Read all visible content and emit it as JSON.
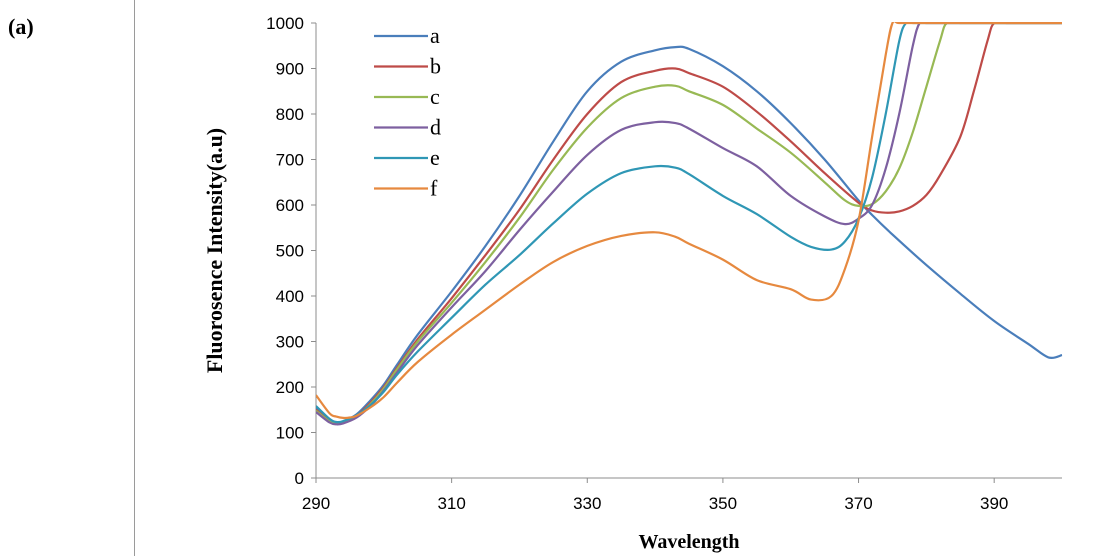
{
  "panel_label": "(a)",
  "chart_data": {
    "type": "line",
    "xlabel": "Wavelength",
    "ylabel": "Fluorosence Intensity(a.u)",
    "xlim": [
      290,
      400
    ],
    "ylim": [
      0,
      1000
    ],
    "xticks": [
      290,
      310,
      330,
      350,
      370,
      390
    ],
    "yticks": [
      0,
      100,
      200,
      300,
      400,
      500,
      600,
      700,
      800,
      900,
      1000
    ],
    "grid": false,
    "legend_position": "top-left",
    "series": [
      {
        "name": "a",
        "color": "#4a7ebb",
        "x": [
          290,
          292,
          293,
          294,
          296,
          298,
          300,
          302,
          305,
          310,
          315,
          320,
          325,
          330,
          335,
          340,
          343,
          345,
          350,
          355,
          360,
          365,
          370,
          372,
          375,
          380,
          385,
          390,
          395,
          398,
          400
        ],
        "y": [
          155,
          128,
          122,
          124,
          140,
          170,
          205,
          250,
          315,
          410,
          510,
          620,
          740,
          850,
          915,
          940,
          947,
          943,
          905,
          850,
          780,
          700,
          610,
          578,
          535,
          468,
          405,
          345,
          295,
          265,
          270
        ]
      },
      {
        "name": "b",
        "color": "#be4b48",
        "x": [
          290,
          292,
          293,
          294,
          296,
          298,
          300,
          302,
          305,
          310,
          315,
          320,
          325,
          330,
          335,
          340,
          343,
          345,
          350,
          355,
          360,
          365,
          370,
          372,
          374,
          376,
          378,
          380,
          382,
          385,
          387,
          389,
          390,
          392,
          395,
          400
        ],
        "y": [
          150,
          125,
          120,
          122,
          137,
          165,
          200,
          243,
          305,
          395,
          490,
          590,
          700,
          800,
          870,
          895,
          900,
          890,
          860,
          805,
          740,
          670,
          605,
          588,
          583,
          586,
          598,
          622,
          665,
          750,
          850,
          960,
          1000,
          1000,
          1000,
          1000
        ]
      },
      {
        "name": "c",
        "color": "#98b954",
        "x": [
          290,
          292,
          293,
          294,
          296,
          298,
          300,
          302,
          305,
          310,
          315,
          320,
          325,
          330,
          335,
          340,
          343,
          345,
          350,
          355,
          360,
          365,
          368,
          370,
          372,
          374,
          376,
          378,
          380,
          382,
          383,
          385,
          390,
          395,
          400
        ],
        "y": [
          148,
          124,
          119,
          121,
          135,
          162,
          197,
          240,
          300,
          385,
          475,
          572,
          678,
          770,
          835,
          860,
          862,
          850,
          820,
          768,
          715,
          650,
          610,
          598,
          602,
          630,
          680,
          760,
          860,
          960,
          1000,
          1000,
          1000,
          1000,
          1000
        ]
      },
      {
        "name": "d",
        "color": "#7d60a0",
        "x": [
          290,
          292,
          293,
          294,
          296,
          298,
          300,
          302,
          305,
          310,
          315,
          320,
          325,
          330,
          335,
          340,
          343,
          345,
          350,
          355,
          360,
          365,
          368,
          370,
          372,
          374,
          376,
          378,
          379,
          380,
          385,
          390,
          395,
          400
        ],
        "y": [
          145,
          122,
          118,
          120,
          133,
          158,
          192,
          233,
          292,
          375,
          455,
          545,
          630,
          710,
          765,
          782,
          780,
          768,
          725,
          685,
          620,
          575,
          558,
          570,
          600,
          680,
          800,
          950,
          1000,
          1000,
          1000,
          1000,
          1000,
          1000
        ]
      },
      {
        "name": "e",
        "color": "#2f97b5",
        "x": [
          290,
          292,
          293,
          294,
          296,
          298,
          300,
          302,
          305,
          310,
          315,
          320,
          325,
          330,
          335,
          340,
          343,
          345,
          350,
          355,
          360,
          363,
          366,
          368,
          370,
          372,
          374,
          376,
          377,
          378,
          380,
          385,
          390,
          395,
          400
        ],
        "y": [
          158,
          130,
          123,
          125,
          138,
          160,
          190,
          228,
          278,
          352,
          425,
          490,
          560,
          625,
          670,
          685,
          682,
          668,
          620,
          580,
          530,
          508,
          502,
          520,
          570,
          660,
          800,
          960,
          1000,
          1000,
          1000,
          1000,
          1000,
          1000,
          1000
        ]
      },
      {
        "name": "f",
        "color": "#e6893f",
        "x": [
          290,
          292,
          293,
          294,
          295,
          296,
          298,
          300,
          302,
          305,
          310,
          315,
          320,
          325,
          330,
          335,
          340,
          343,
          345,
          350,
          355,
          360,
          363,
          366,
          368,
          370,
          372,
          374,
          375,
          376,
          380,
          385,
          390,
          395,
          400
        ],
        "y": [
          182,
          142,
          135,
          132,
          133,
          137,
          155,
          178,
          210,
          255,
          315,
          370,
          425,
          475,
          510,
          532,
          540,
          530,
          515,
          480,
          435,
          415,
          392,
          400,
          460,
          565,
          750,
          930,
          1000,
          1000,
          1000,
          1000,
          1000,
          1000,
          1000
        ]
      }
    ]
  }
}
